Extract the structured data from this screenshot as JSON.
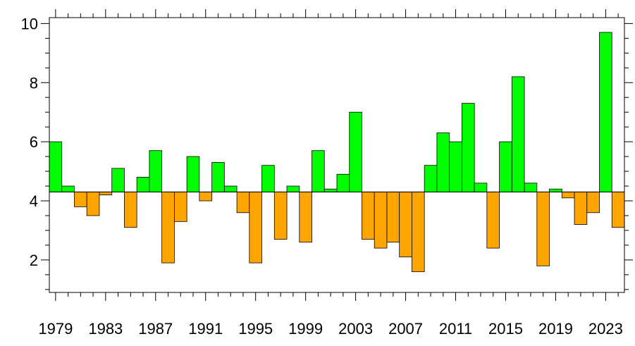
{
  "chart_data": {
    "type": "bar",
    "title": "",
    "xlabel": "",
    "ylabel": "",
    "baseline": 4.3,
    "x": [
      1979,
      1980,
      1981,
      1982,
      1983,
      1984,
      1985,
      1986,
      1987,
      1988,
      1989,
      1990,
      1991,
      1992,
      1993,
      1994,
      1995,
      1996,
      1997,
      1998,
      1999,
      2000,
      2001,
      2002,
      2003,
      2004,
      2005,
      2006,
      2007,
      2008,
      2009,
      2010,
      2011,
      2012,
      2013,
      2014,
      2015,
      2016,
      2017,
      2018,
      2019,
      2020,
      2021,
      2022,
      2023,
      2024
    ],
    "values": [
      6.0,
      4.5,
      3.8,
      3.5,
      4.2,
      5.1,
      3.1,
      4.8,
      5.7,
      1.9,
      3.3,
      5.5,
      4.0,
      5.3,
      4.5,
      3.6,
      1.9,
      5.2,
      2.7,
      4.5,
      2.6,
      5.7,
      4.4,
      4.9,
      7.0,
      2.7,
      2.4,
      2.6,
      2.1,
      1.6,
      5.2,
      6.3,
      6.0,
      7.3,
      4.6,
      2.4,
      6.0,
      8.2,
      4.6,
      1.8,
      4.4,
      4.1,
      3.2,
      3.6,
      9.7,
      3.1
    ],
    "colors": {
      "above": "#00ff00",
      "below": "#ffa500",
      "edge": "#000000"
    },
    "xlim": [
      1978.5,
      2024.5
    ],
    "ylim": [
      0.9,
      10.2
    ],
    "xticks": [
      "1979",
      "1983",
      "1987",
      "1991",
      "1995",
      "1999",
      "2003",
      "2007",
      "2011",
      "2015",
      "2019",
      "2023"
    ],
    "yticks": [
      "2",
      "4",
      "6",
      "8",
      "10"
    ],
    "grid": false
  }
}
